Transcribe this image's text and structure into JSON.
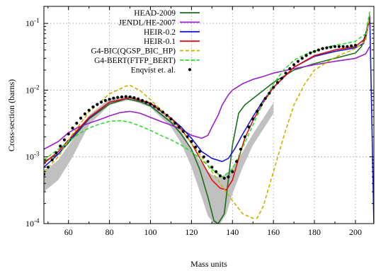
{
  "chart_data": {
    "type": "line",
    "xlabel": "Mass units",
    "ylabel": "Cross-section (barns)",
    "xlim": [
      48,
      209
    ],
    "ylim": [
      0.0001,
      0.18
    ],
    "yscale": "log",
    "grid": true,
    "legend_position": "top-right",
    "x_ticks": [
      60,
      80,
      100,
      120,
      140,
      160,
      180,
      200
    ],
    "y_ticks": [
      {
        "value": 0.0001,
        "base": "10",
        "exp": "-4"
      },
      {
        "value": 0.001,
        "base": "10",
        "exp": "-3"
      },
      {
        "value": 0.01,
        "base": "10",
        "exp": "-2"
      },
      {
        "value": 0.1,
        "base": "10",
        "exp": "-1"
      }
    ],
    "band": {
      "color": "#c0c0c0",
      "x": [
        48,
        55,
        62,
        70,
        80,
        90,
        100,
        110,
        115,
        120,
        125,
        128,
        131,
        134,
        137,
        140,
        145,
        150,
        160
      ],
      "lower": [
        0.0003,
        0.00045,
        0.001,
        0.003,
        0.006,
        0.0072,
        0.0055,
        0.0028,
        0.0016,
        0.0007,
        0.00025,
        0.00013,
        0.0001,
        0.0001,
        0.00014,
        0.00028,
        0.0007,
        0.0015,
        0.0045
      ],
      "upper": [
        0.0006,
        0.0009,
        0.0018,
        0.0042,
        0.0075,
        0.0082,
        0.0066,
        0.0036,
        0.0024,
        0.0013,
        0.0008,
        0.0006,
        0.00052,
        0.0005,
        0.00055,
        0.0007,
        0.0012,
        0.0022,
        0.0065
      ]
    },
    "series": [
      {
        "name": "HEAD-2009",
        "color": "#1a6e1a",
        "style": "solid",
        "x": [
          48,
          55,
          62,
          70,
          80,
          88,
          95,
          100,
          110,
          115,
          120,
          124,
          128,
          131,
          133,
          136,
          140,
          143,
          146,
          150,
          160,
          170,
          180,
          190,
          200,
          203,
          205,
          207
        ],
        "y": [
          0.00085,
          0.0011,
          0.0019,
          0.0037,
          0.0062,
          0.0074,
          0.0067,
          0.0058,
          0.0033,
          0.0022,
          0.0013,
          0.00065,
          0.00025,
          0.00011,
          0.0001,
          0.00014,
          0.0015,
          0.0045,
          0.006,
          0.0075,
          0.013,
          0.02,
          0.025,
          0.03,
          0.036,
          0.045,
          0.07,
          0.12
        ]
      },
      {
        "name": "JENDL/HE-2007",
        "color": "#9a1fc8",
        "style": "solid",
        "x": [
          48,
          55,
          60,
          65,
          70,
          75,
          80,
          85,
          90,
          95,
          100,
          105,
          110,
          115,
          120,
          125,
          128,
          130,
          133,
          135,
          138,
          140,
          145,
          150,
          155,
          160,
          170,
          180,
          190,
          200,
          205,
          207
        ],
        "y": [
          0.0013,
          0.0017,
          0.0023,
          0.0028,
          0.0032,
          0.0036,
          0.0041,
          0.0046,
          0.0048,
          0.0045,
          0.0039,
          0.0034,
          0.003,
          0.0026,
          0.0021,
          0.0019,
          0.0021,
          0.0028,
          0.0042,
          0.006,
          0.0085,
          0.01,
          0.0125,
          0.0145,
          0.016,
          0.018,
          0.021,
          0.024,
          0.027,
          0.03,
          0.035,
          0.045
        ]
      },
      {
        "name": "HEIR-0.2",
        "color": "#1a1ad6",
        "style": "solid",
        "x": [
          48,
          55,
          62,
          70,
          80,
          90,
          100,
          110,
          115,
          120,
          125,
          130,
          135,
          138,
          141,
          145,
          150,
          155,
          160,
          170,
          180,
          190,
          200,
          204,
          207,
          209
        ],
        "y": [
          0.0007,
          0.0011,
          0.002,
          0.0038,
          0.0066,
          0.0077,
          0.0063,
          0.0038,
          0.0028,
          0.0019,
          0.0012,
          0.00095,
          0.00085,
          0.00095,
          0.0013,
          0.0022,
          0.004,
          0.007,
          0.011,
          0.022,
          0.032,
          0.038,
          0.043,
          0.05,
          0.13,
          0.0001
        ]
      },
      {
        "name": "HEIR-0.1",
        "color": "#e01010",
        "style": "solid",
        "x": [
          48,
          55,
          62,
          70,
          80,
          90,
          100,
          110,
          115,
          120,
          125,
          130,
          134,
          137,
          140,
          143,
          146,
          150,
          155,
          160,
          170,
          180,
          190,
          200,
          205,
          207
        ],
        "y": [
          0.0008,
          0.0012,
          0.0021,
          0.0039,
          0.0066,
          0.0077,
          0.0064,
          0.0038,
          0.0026,
          0.0016,
          0.00085,
          0.00045,
          0.00034,
          0.00032,
          0.00045,
          0.00095,
          0.0019,
          0.0035,
          0.0065,
          0.011,
          0.022,
          0.033,
          0.04,
          0.045,
          0.06,
          0.12
        ]
      },
      {
        "name": "G4-BIC(QGSP_BIC_HP)",
        "color": "#c8b400",
        "style": "dashed",
        "x": [
          48,
          55,
          62,
          70,
          80,
          88,
          90,
          95,
          100,
          110,
          115,
          120,
          125,
          130,
          135,
          140,
          145,
          150,
          152,
          155,
          160,
          165,
          170,
          175,
          180,
          190,
          200,
          205,
          207
        ],
        "y": [
          0.0006,
          0.001,
          0.0022,
          0.0047,
          0.0088,
          0.0115,
          0.0118,
          0.0098,
          0.0072,
          0.0036,
          0.0025,
          0.0016,
          0.001,
          0.0006,
          0.00036,
          0.00022,
          0.00014,
          0.00012,
          0.00012,
          0.00018,
          0.0006,
          0.002,
          0.006,
          0.012,
          0.02,
          0.031,
          0.042,
          0.055,
          0.14
        ]
      },
      {
        "name": "G4-BERT(FTFP_BERT)",
        "color": "#2ddc2d",
        "style": "dashed",
        "x": [
          48,
          55,
          60,
          65,
          70,
          75,
          80,
          85,
          90,
          95,
          100,
          105,
          110,
          115,
          120,
          125,
          130,
          135,
          140,
          145,
          150,
          155,
          160,
          165,
          170,
          175,
          180,
          185,
          190,
          195,
          200,
          205,
          207
        ],
        "y": [
          0.0009,
          0.0013,
          0.0017,
          0.0022,
          0.0027,
          0.0031,
          0.0034,
          0.0035,
          0.0033,
          0.0029,
          0.0025,
          0.0021,
          0.0018,
          0.0015,
          0.0012,
          0.0009,
          0.00065,
          0.0005,
          0.00065,
          0.0014,
          0.003,
          0.0065,
          0.0125,
          0.02,
          0.028,
          0.034,
          0.038,
          0.043,
          0.047,
          0.05,
          0.054,
          0.07,
          0.15
        ]
      },
      {
        "name": "Enqvist et. al.",
        "color": "#000000",
        "style": "dots",
        "x": [
          48,
          50,
          52,
          54,
          56,
          58,
          60,
          62,
          64,
          66,
          68,
          70,
          72,
          74,
          76,
          78,
          80,
          82,
          84,
          86,
          88,
          90,
          92,
          94,
          96,
          98,
          100,
          102,
          104,
          106,
          108,
          110,
          112,
          114,
          116,
          118,
          120,
          122,
          124,
          126,
          128,
          130,
          132,
          134,
          136,
          138,
          140,
          142,
          144,
          146,
          148,
          150,
          152,
          154,
          156,
          158,
          160,
          162,
          164,
          166,
          168,
          170,
          172,
          174,
          176,
          178,
          180,
          182,
          184,
          186,
          188,
          190,
          192,
          194,
          196,
          198,
          200
        ],
        "y": [
          0.00055,
          0.0007,
          0.0009,
          0.00115,
          0.00145,
          0.0018,
          0.0022,
          0.0027,
          0.0032,
          0.0038,
          0.0044,
          0.005,
          0.0056,
          0.0061,
          0.0066,
          0.007,
          0.0073,
          0.0076,
          0.0078,
          0.0079,
          0.008,
          0.0079,
          0.0077,
          0.0074,
          0.007,
          0.0066,
          0.0062,
          0.0057,
          0.0052,
          0.0047,
          0.0042,
          0.0037,
          0.0032,
          0.0028,
          0.0024,
          0.002,
          0.0017,
          0.0014,
          0.0012,
          0.001,
          0.00085,
          0.0007,
          0.0006,
          0.00052,
          0.00048,
          0.0005,
          0.0006,
          0.00085,
          0.0013,
          0.002,
          0.0028,
          0.0037,
          0.0048,
          0.006,
          0.0075,
          0.009,
          0.011,
          0.013,
          0.015,
          0.018,
          0.021,
          0.024,
          0.027,
          0.03,
          0.033,
          0.036,
          0.038,
          0.04,
          0.042,
          0.043,
          0.044,
          0.045,
          0.045,
          0.045,
          0.045,
          0.046,
          0.047
        ]
      }
    ]
  }
}
